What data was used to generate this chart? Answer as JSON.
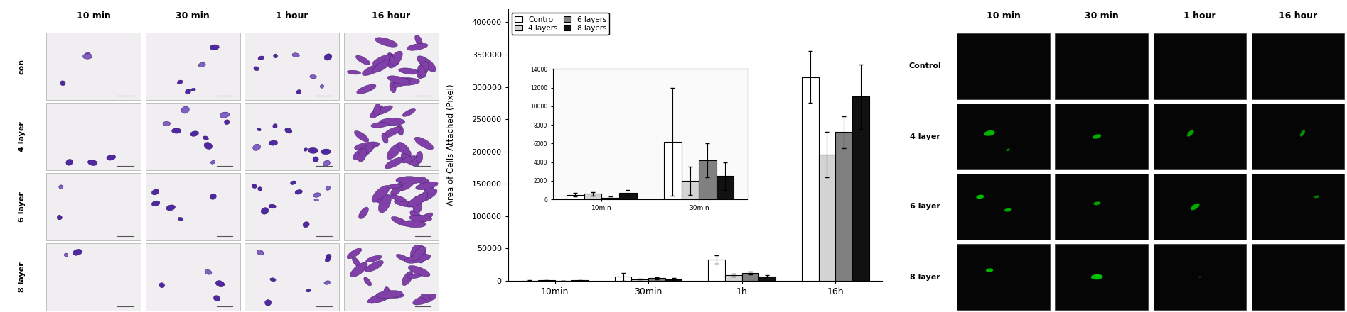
{
  "time_labels": [
    "10min",
    "30min",
    "1h",
    "16h"
  ],
  "time_labels_top": [
    "10 min",
    "30 min",
    "1 hour",
    "16 hour"
  ],
  "row_labels_left": [
    "con",
    "4 layer",
    "6 layer",
    "8 layer"
  ],
  "row_labels_right": [
    "Control",
    "4 layer",
    "6 layer",
    "8 layer"
  ],
  "series": {
    "Control": {
      "values": [
        500,
        6200,
        33000,
        315000
      ],
      "errors": [
        200,
        5800,
        7000,
        40000
      ],
      "color": "#FFFFFF",
      "edgecolor": "#000000"
    },
    "4 layers": {
      "values": [
        600,
        2000,
        9000,
        195000
      ],
      "errors": [
        200,
        1500,
        2000,
        35000
      ],
      "color": "#D3D3D3",
      "edgecolor": "#000000"
    },
    "6 layers": {
      "values": [
        200,
        4200,
        12000,
        230000
      ],
      "errors": [
        100,
        1800,
        2500,
        25000
      ],
      "color": "#808080",
      "edgecolor": "#000000"
    },
    "8 layers": {
      "values": [
        700,
        2500,
        7000,
        285000
      ],
      "errors": [
        300,
        1500,
        2000,
        50000
      ],
      "color": "#111111",
      "edgecolor": "#000000"
    }
  },
  "ylabel": "Area of Cells Attached (Pixel)",
  "ylim": [
    0,
    420000
  ],
  "yticks": [
    0,
    50000,
    100000,
    150000,
    200000,
    250000,
    300000,
    350000,
    400000
  ],
  "bar_width": 0.18,
  "inset": {
    "ylim": [
      0,
      14000
    ],
    "yticks": [
      0,
      2000,
      4000,
      6000,
      8000,
      10000,
      12000,
      14000
    ],
    "time_labels": [
      "10min",
      "30min"
    ]
  },
  "legend_labels": [
    "Control",
    "4 layers",
    "6 layers",
    "8 layers"
  ],
  "legend_colors": [
    "#FFFFFF",
    "#D3D3D3",
    "#808080",
    "#111111"
  ],
  "background_color": "#FFFFFF",
  "figure_width": 18.95,
  "figure_height": 4.4,
  "left_panel_bg": "#E8E8E8",
  "right_panel_bg": "#000000",
  "cell_border_color": "#AAAAAA",
  "purple_cell_colors": [
    "#6B3FA0",
    "#7B4FB0",
    "#9B6FC0"
  ],
  "green_cell_colors": [
    "#00AA00",
    "#00CC00",
    "#22EE22"
  ]
}
